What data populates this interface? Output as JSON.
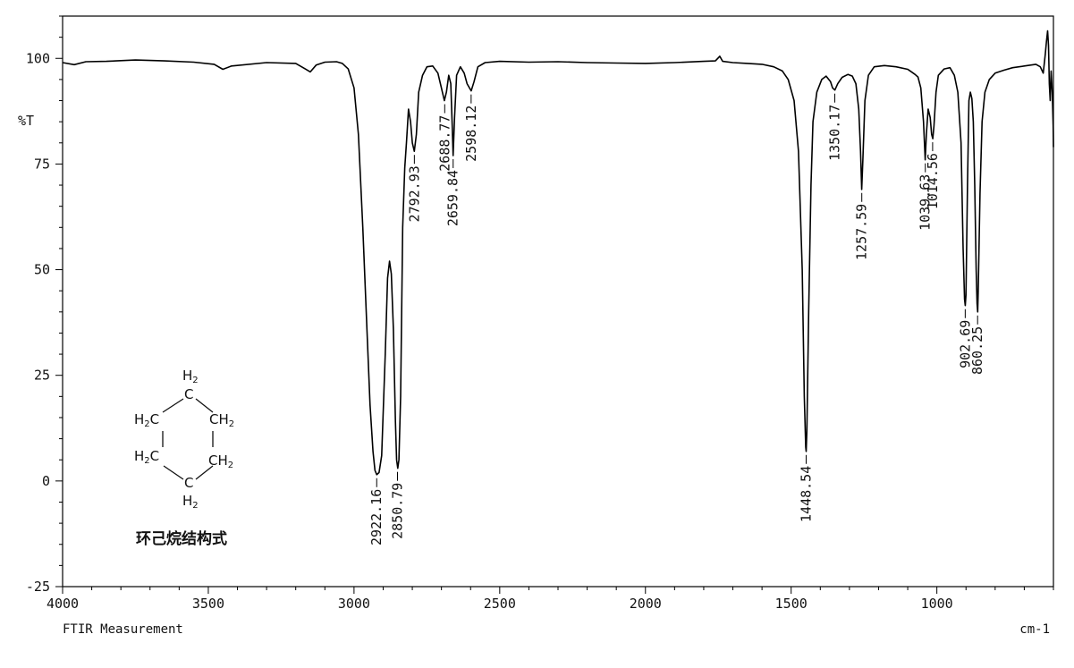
{
  "chart_data": {
    "type": "line",
    "title": "",
    "xlabel": "",
    "ylabel": "%T",
    "x_unit": "cm-1",
    "footer": "FTIR Measurement",
    "xlim": [
      4000,
      600
    ],
    "ylim": [
      -25,
      110
    ],
    "x_ticks": [
      4000,
      3500,
      3000,
      2500,
      2000,
      1500,
      1000
    ],
    "y_ticks": [
      100,
      75,
      50,
      25,
      0,
      -25
    ],
    "grid": false,
    "line_color": "#000000",
    "series": [
      {
        "points": [
          [
            4000,
            99
          ],
          [
            3960,
            98.5
          ],
          [
            3920,
            99.2
          ],
          [
            3850,
            99.3
          ],
          [
            3750,
            99.6
          ],
          [
            3650,
            99.4
          ],
          [
            3550,
            99.1
          ],
          [
            3480,
            98.6
          ],
          [
            3450,
            97.4
          ],
          [
            3420,
            98.2
          ],
          [
            3300,
            99.0
          ],
          [
            3200,
            98.8
          ],
          [
            3170,
            97.6
          ],
          [
            3150,
            96.8
          ],
          [
            3130,
            98.4
          ],
          [
            3100,
            99.1
          ],
          [
            3060,
            99.2
          ],
          [
            3040,
            98.8
          ],
          [
            3020,
            97.5
          ],
          [
            3000,
            93
          ],
          [
            2985,
            82
          ],
          [
            2970,
            60
          ],
          [
            2955,
            35
          ],
          [
            2945,
            18
          ],
          [
            2935,
            7
          ],
          [
            2928,
            2.5
          ],
          [
            2922,
            1.5
          ],
          [
            2914,
            2
          ],
          [
            2905,
            6
          ],
          [
            2893,
            30
          ],
          [
            2885,
            48
          ],
          [
            2878,
            52
          ],
          [
            2872,
            49
          ],
          [
            2865,
            36
          ],
          [
            2858,
            14
          ],
          [
            2854,
            5
          ],
          [
            2850,
            3
          ],
          [
            2846,
            5
          ],
          [
            2840,
            20
          ],
          [
            2833,
            60
          ],
          [
            2826,
            74
          ],
          [
            2820,
            80
          ],
          [
            2813,
            88
          ],
          [
            2806,
            85
          ],
          [
            2800,
            80
          ],
          [
            2793,
            78
          ],
          [
            2786,
            82
          ],
          [
            2778,
            92
          ],
          [
            2765,
            96
          ],
          [
            2750,
            98
          ],
          [
            2730,
            98.2
          ],
          [
            2712,
            96.5
          ],
          [
            2700,
            93
          ],
          [
            2690,
            90
          ],
          [
            2683,
            92
          ],
          [
            2675,
            96
          ],
          [
            2668,
            94
          ],
          [
            2663,
            84
          ],
          [
            2660,
            77
          ],
          [
            2655,
            86
          ],
          [
            2648,
            96
          ],
          [
            2635,
            98
          ],
          [
            2622,
            96.5
          ],
          [
            2612,
            94
          ],
          [
            2598,
            92.3
          ],
          [
            2588,
            94.5
          ],
          [
            2575,
            98
          ],
          [
            2550,
            99
          ],
          [
            2500,
            99.3
          ],
          [
            2400,
            99.1
          ],
          [
            2300,
            99.2
          ],
          [
            2200,
            99.0
          ],
          [
            2100,
            98.9
          ],
          [
            2000,
            98.8
          ],
          [
            1900,
            99.0
          ],
          [
            1800,
            99.3
          ],
          [
            1760,
            99.4
          ],
          [
            1745,
            100.5
          ],
          [
            1735,
            99.3
          ],
          [
            1700,
            99.0
          ],
          [
            1650,
            98.8
          ],
          [
            1600,
            98.6
          ],
          [
            1560,
            98.0
          ],
          [
            1530,
            97.0
          ],
          [
            1510,
            95.0
          ],
          [
            1490,
            90
          ],
          [
            1475,
            78
          ],
          [
            1462,
            50
          ],
          [
            1455,
            20
          ],
          [
            1450,
            8
          ],
          [
            1448.5,
            7
          ],
          [
            1446,
            12
          ],
          [
            1440,
            40
          ],
          [
            1432,
            70
          ],
          [
            1425,
            85
          ],
          [
            1412,
            92
          ],
          [
            1395,
            95
          ],
          [
            1380,
            95.8
          ],
          [
            1365,
            94.5
          ],
          [
            1358,
            93
          ],
          [
            1350,
            92.5
          ],
          [
            1340,
            94
          ],
          [
            1325,
            95.5
          ],
          [
            1305,
            96.2
          ],
          [
            1290,
            95.8
          ],
          [
            1278,
            94
          ],
          [
            1268,
            88
          ],
          [
            1262,
            78
          ],
          [
            1258,
            69
          ],
          [
            1254,
            76
          ],
          [
            1247,
            90
          ],
          [
            1235,
            96
          ],
          [
            1215,
            98
          ],
          [
            1180,
            98.3
          ],
          [
            1140,
            98.0
          ],
          [
            1100,
            97.4
          ],
          [
            1075,
            96.2
          ],
          [
            1065,
            95.6
          ],
          [
            1055,
            93
          ],
          [
            1046,
            85
          ],
          [
            1040,
            76
          ],
          [
            1036,
            82
          ],
          [
            1030,
            88
          ],
          [
            1023,
            86
          ],
          [
            1018,
            82
          ],
          [
            1014,
            81
          ],
          [
            1010,
            84
          ],
          [
            1003,
            92
          ],
          [
            995,
            96
          ],
          [
            975,
            97.5
          ],
          [
            955,
            97.8
          ],
          [
            940,
            96
          ],
          [
            928,
            92
          ],
          [
            917,
            80
          ],
          [
            910,
            55
          ],
          [
            905,
            43
          ],
          [
            902.5,
            41.5
          ],
          [
            900,
            44
          ],
          [
            895,
            70
          ],
          [
            890,
            90
          ],
          [
            885,
            92
          ],
          [
            880,
            90.5
          ],
          [
            875,
            85
          ],
          [
            870,
            70
          ],
          [
            865,
            50
          ],
          [
            862,
            42
          ],
          [
            860,
            40
          ],
          [
            858,
            45
          ],
          [
            852,
            68
          ],
          [
            845,
            85
          ],
          [
            835,
            92
          ],
          [
            820,
            95
          ],
          [
            800,
            96.5
          ],
          [
            770,
            97.2
          ],
          [
            740,
            97.8
          ],
          [
            700,
            98.2
          ],
          [
            660,
            98.6
          ],
          [
            645,
            98.0
          ],
          [
            635,
            96.5
          ],
          [
            628,
            101
          ],
          [
            624,
            104
          ],
          [
            620,
            106.5
          ],
          [
            617,
            103
          ],
          [
            614,
            94
          ],
          [
            611,
            90
          ],
          [
            608,
            97
          ],
          [
            604,
            92
          ],
          [
            601,
            84
          ],
          [
            600,
            79
          ]
        ]
      }
    ],
    "peak_labels": [
      {
        "x": 2922.16,
        "y": 1.5,
        "text": "2922.16"
      },
      {
        "x": 2850.79,
        "y": 3,
        "text": "2850.79"
      },
      {
        "x": 2792.93,
        "y": 78,
        "text": "2792.93"
      },
      {
        "x": 2688.77,
        "y": 90,
        "text": "2688.77"
      },
      {
        "x": 2659.84,
        "y": 77,
        "text": "2659.84"
      },
      {
        "x": 2598.12,
        "y": 92.3,
        "text": "2598.12"
      },
      {
        "x": 1448.54,
        "y": 7,
        "text": "1448.54"
      },
      {
        "x": 1350.17,
        "y": 92.5,
        "text": "1350.17"
      },
      {
        "x": 1257.59,
        "y": 69,
        "text": "1257.59"
      },
      {
        "x": 1039.63,
        "y": 76,
        "text": "1039.63"
      },
      {
        "x": 1014.56,
        "y": 81,
        "text": "1014.56"
      },
      {
        "x": 902.69,
        "y": 41.5,
        "text": "902.69"
      },
      {
        "x": 860.25,
        "y": 40,
        "text": "860.25"
      }
    ],
    "structure": {
      "caption": "环己烷结构式",
      "top_h": "H",
      "top_h_sub": "2",
      "c": "C",
      "left_upper": "H",
      "left_upper_sub": "2",
      "right_upper": "CH",
      "right_upper_sub": "2",
      "left_lower": "H",
      "left_lower_sub": "2",
      "right_lower": "CH",
      "right_lower_sub": "2",
      "bottom_h": "H",
      "bottom_h_sub": "2"
    }
  }
}
